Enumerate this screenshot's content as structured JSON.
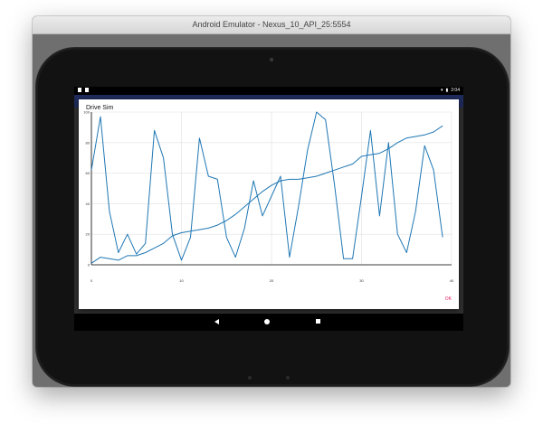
{
  "window": {
    "title": "Android Emulator - Nexus_10_API_25:5554"
  },
  "status_bar": {
    "time": "2:04"
  },
  "dialog": {
    "title": "Drive Sim",
    "ok_label": "OK"
  },
  "colors": {
    "series": "#1f77b4",
    "axis": "#000000",
    "grid": "#e0e0e0",
    "ok": "#e91e63"
  },
  "chart_data": {
    "type": "line",
    "title": "Drive Sim",
    "xlabel": "",
    "ylabel": "",
    "xlim": [
      0,
      40
    ],
    "ylim": [
      0,
      100
    ],
    "x_ticks": [
      0,
      10,
      20,
      30,
      40
    ],
    "x_tick_labels": [
      "0",
      "10",
      "20",
      "30",
      "40"
    ],
    "y_ticks": [
      0,
      20,
      40,
      60,
      80,
      100
    ],
    "y_tick_labels": [
      "0",
      "20",
      "40",
      "60",
      "80",
      "100"
    ],
    "grid": true,
    "series": [
      {
        "values_x": [
          0,
          1,
          2,
          3,
          4,
          5,
          6,
          7,
          8,
          9,
          10,
          11,
          12,
          13,
          14,
          15,
          16,
          17,
          18,
          19,
          20,
          21,
          22,
          23,
          24,
          25,
          26,
          27,
          28,
          29,
          30,
          31,
          32,
          33,
          34,
          35,
          36,
          37,
          38,
          39
        ],
        "values_y": [
          62,
          97,
          35,
          8,
          20,
          7,
          14,
          88,
          70,
          20,
          3,
          18,
          83,
          58,
          56,
          18,
          5,
          24,
          55,
          32,
          45,
          58,
          5,
          38,
          75,
          100,
          95,
          52,
          4,
          4,
          45,
          88,
          32,
          80,
          20,
          8,
          35,
          78,
          62,
          18
        ]
      },
      {
        "values_x": [
          0,
          1,
          2,
          3,
          4,
          5,
          6,
          7,
          8,
          9,
          10,
          11,
          12,
          13,
          14,
          15,
          16,
          17,
          18,
          19,
          20,
          21,
          22,
          23,
          24,
          25,
          26,
          27,
          28,
          29,
          30,
          31,
          32,
          33,
          34,
          35,
          36,
          37,
          38,
          39
        ],
        "values_y": [
          1,
          5,
          4,
          3,
          6,
          6,
          8,
          11,
          14,
          19,
          21,
          22,
          23,
          24,
          26,
          29,
          33,
          38,
          43,
          48,
          52,
          55,
          56,
          56,
          57,
          58,
          60,
          62,
          64,
          66,
          71,
          72,
          73,
          76,
          80,
          83,
          84,
          85,
          87,
          91
        ]
      }
    ]
  }
}
